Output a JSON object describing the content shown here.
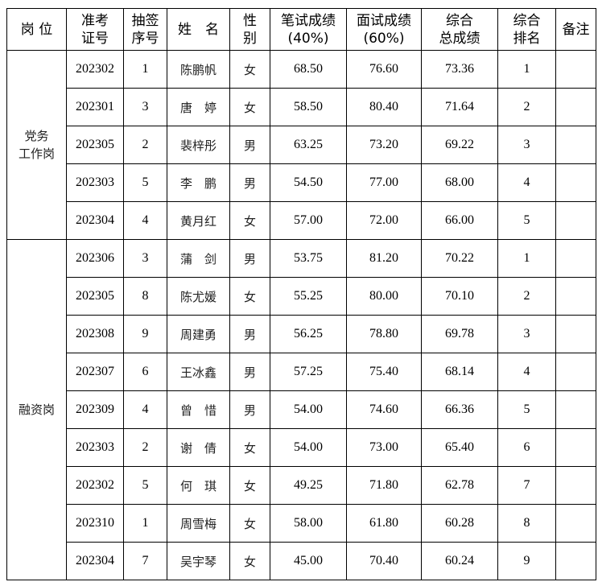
{
  "headers": [
    {
      "key": "post",
      "lines": [
        "岗 位"
      ]
    },
    {
      "key": "exam_id",
      "lines": [
        "准考",
        "证号"
      ]
    },
    {
      "key": "draw_no",
      "lines": [
        "抽签",
        "序号"
      ]
    },
    {
      "key": "name",
      "lines": [
        "姓　名"
      ]
    },
    {
      "key": "sex",
      "lines": [
        "性",
        "别"
      ]
    },
    {
      "key": "written",
      "lines": [
        "笔试成绩",
        "(40%)"
      ]
    },
    {
      "key": "interview",
      "lines": [
        "面试成绩",
        "(60%)"
      ]
    },
    {
      "key": "total",
      "lines": [
        "综合",
        "总成绩"
      ]
    },
    {
      "key": "rank",
      "lines": [
        "综合",
        "排名"
      ]
    },
    {
      "key": "remark",
      "lines": [
        "备注"
      ]
    }
  ],
  "groups": [
    {
      "post_lines": [
        "党务",
        "工作岗"
      ],
      "rows": [
        {
          "exam_id": "202302",
          "draw_no": "1",
          "name": "陈鹏帆",
          "sex": "女",
          "written": "68.50",
          "interview": "76.60",
          "total": "73.36",
          "rank": "1",
          "remark": ""
        },
        {
          "exam_id": "202301",
          "draw_no": "3",
          "name": "唐　婷",
          "sex": "女",
          "written": "58.50",
          "interview": "80.40",
          "total": "71.64",
          "rank": "2",
          "remark": ""
        },
        {
          "exam_id": "202305",
          "draw_no": "2",
          "name": "裴梓彤",
          "sex": "男",
          "written": "63.25",
          "interview": "73.20",
          "total": "69.22",
          "rank": "3",
          "remark": ""
        },
        {
          "exam_id": "202303",
          "draw_no": "5",
          "name": "李　鹏",
          "sex": "男",
          "written": "54.50",
          "interview": "77.00",
          "total": "68.00",
          "rank": "4",
          "remark": ""
        },
        {
          "exam_id": "202304",
          "draw_no": "4",
          "name": "黄月红",
          "sex": "女",
          "written": "57.00",
          "interview": "72.00",
          "total": "66.00",
          "rank": "5",
          "remark": ""
        }
      ]
    },
    {
      "post_lines": [
        "融资岗"
      ],
      "rows": [
        {
          "exam_id": "202306",
          "draw_no": "3",
          "name": "蒲　剑",
          "sex": "男",
          "written": "53.75",
          "interview": "81.20",
          "total": "70.22",
          "rank": "1",
          "remark": ""
        },
        {
          "exam_id": "202305",
          "draw_no": "8",
          "name": "陈尤媛",
          "sex": "女",
          "written": "55.25",
          "interview": "80.00",
          "total": "70.10",
          "rank": "2",
          "remark": ""
        },
        {
          "exam_id": "202308",
          "draw_no": "9",
          "name": "周建勇",
          "sex": "男",
          "written": "56.25",
          "interview": "78.80",
          "total": "69.78",
          "rank": "3",
          "remark": ""
        },
        {
          "exam_id": "202307",
          "draw_no": "6",
          "name": "王冰鑫",
          "sex": "男",
          "written": "57.25",
          "interview": "75.40",
          "total": "68.14",
          "rank": "4",
          "remark": ""
        },
        {
          "exam_id": "202309",
          "draw_no": "4",
          "name": "曾　惜",
          "sex": "男",
          "written": "54.00",
          "interview": "74.60",
          "total": "66.36",
          "rank": "5",
          "remark": ""
        },
        {
          "exam_id": "202303",
          "draw_no": "2",
          "name": "谢　倩",
          "sex": "女",
          "written": "54.00",
          "interview": "73.00",
          "total": "65.40",
          "rank": "6",
          "remark": ""
        },
        {
          "exam_id": "202302",
          "draw_no": "5",
          "name": "何　琪",
          "sex": "女",
          "written": "49.25",
          "interview": "71.80",
          "total": "62.78",
          "rank": "7",
          "remark": ""
        },
        {
          "exam_id": "202310",
          "draw_no": "1",
          "name": "周雪梅",
          "sex": "女",
          "written": "58.00",
          "interview": "61.80",
          "total": "60.28",
          "rank": "8",
          "remark": ""
        },
        {
          "exam_id": "202304",
          "draw_no": "7",
          "name": "吴宇琴",
          "sex": "女",
          "written": "45.00",
          "interview": "70.40",
          "total": "60.24",
          "rank": "9",
          "remark": ""
        }
      ]
    }
  ]
}
